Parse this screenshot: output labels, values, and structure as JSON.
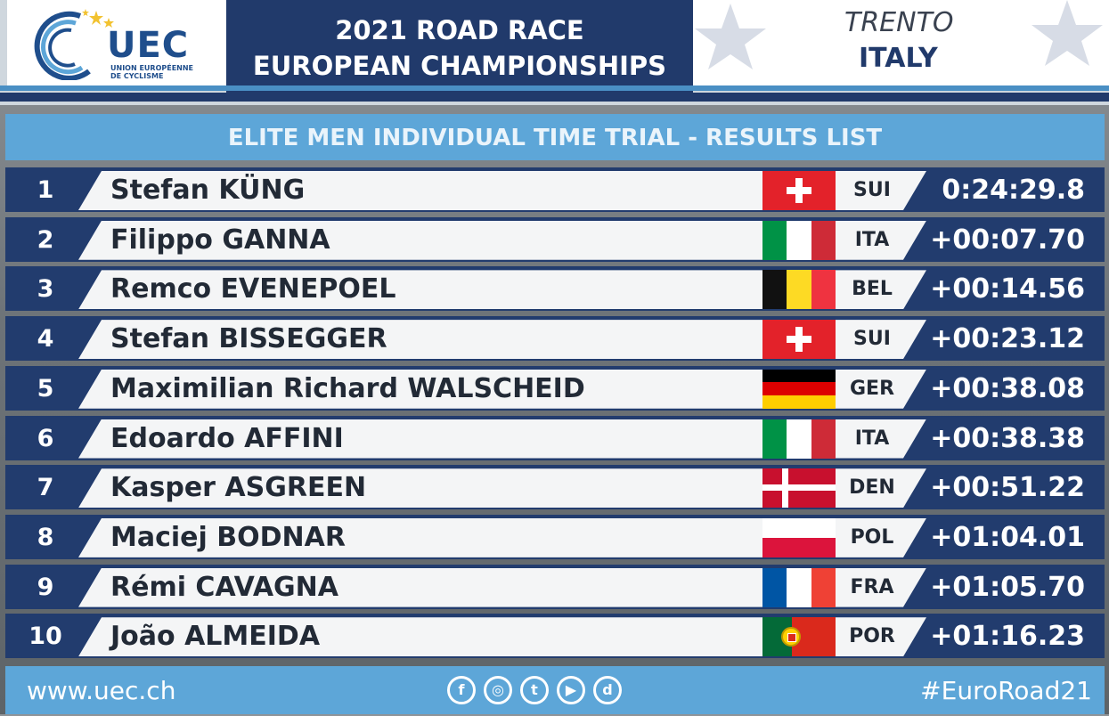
{
  "header": {
    "logo_text": "UEC",
    "logo_sub_line1": "UNION EUROPÉENNE",
    "logo_sub_line2": "DE CYCLISME",
    "title_line1": "2021 ROAD RACE",
    "title_line2": "EUROPEAN CHAMPIONSHIPS",
    "city": "TRENTO",
    "country": "ITALY"
  },
  "subtitle": "ELITE MEN INDIVIDUAL TIME TRIAL - RESULTS LIST",
  "results": [
    {
      "rank": "1",
      "name": "Stefan KÜNG",
      "nat": "SUI",
      "time": "0:24:29.8",
      "flag_icon": "switzerland-flag-icon"
    },
    {
      "rank": "2",
      "name": "Filippo GANNA",
      "nat": "ITA",
      "time": "+00:07.70",
      "flag_icon": "italy-flag-icon"
    },
    {
      "rank": "3",
      "name": "Remco EVENEPOEL",
      "nat": "BEL",
      "time": "+00:14.56",
      "flag_icon": "belgium-flag-icon"
    },
    {
      "rank": "4",
      "name": "Stefan BISSEGGER",
      "nat": "SUI",
      "time": "+00:23.12",
      "flag_icon": "switzerland-flag-icon"
    },
    {
      "rank": "5",
      "name": "Maximilian Richard WALSCHEID",
      "nat": "GER",
      "time": "+00:38.08",
      "flag_icon": "germany-flag-icon"
    },
    {
      "rank": "6",
      "name": "Edoardo AFFINI",
      "nat": "ITA",
      "time": "+00:38.38",
      "flag_icon": "italy-flag-icon"
    },
    {
      "rank": "7",
      "name": "Kasper ASGREEN",
      "nat": "DEN",
      "time": "+00:51.22",
      "flag_icon": "denmark-flag-icon"
    },
    {
      "rank": "8",
      "name": "Maciej BODNAR",
      "nat": "POL",
      "time": "+01:04.01",
      "flag_icon": "poland-flag-icon"
    },
    {
      "rank": "9",
      "name": "Rémi CAVAGNA",
      "nat": "FRA",
      "time": "+01:05.70",
      "flag_icon": "france-flag-icon"
    },
    {
      "rank": "10",
      "name": "João ALMEIDA",
      "nat": "POR",
      "time": "+01:16.23",
      "flag_icon": "portugal-flag-icon"
    }
  ],
  "footer": {
    "url": "www.uec.ch",
    "hashtag": "#EuroRoad21",
    "socials": [
      "facebook-icon",
      "instagram-icon",
      "twitter-icon",
      "youtube-icon",
      "dailymotion-icon"
    ]
  },
  "colors": {
    "navy": "#223c6e",
    "light_blue": "#5da6d8",
    "title_navy": "#213a6b"
  }
}
